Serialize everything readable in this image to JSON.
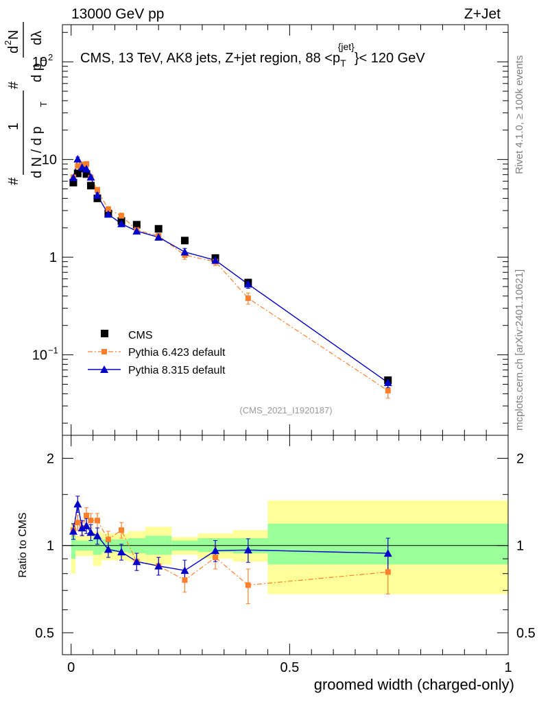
{
  "header": {
    "left": "13000 GeV pp",
    "right": "Z+Jet"
  },
  "side_labels": {
    "rivet": "Rivet 4.1.0, ≥ 100k events",
    "mcplots": "mcplots.cern.ch [arXiv:2401.10621]"
  },
  "chart_data": [
    {
      "type": "scatter",
      "panel": "main",
      "title": "CMS, 13 TeV, AK8 jets, Z+jet region, 88 <p_T^{jet}< 120 GeV",
      "title_parts": {
        "t1": "CMS, 13 TeV, AK8 jets, Z+jet region, 88 <p",
        "sub": "T",
        "sup": "{jet}",
        "t2": "}< 120 GeV"
      },
      "analysis_tag": "(CMS_2021_I1920187)",
      "ylabel_parts": {
        "a": "#",
        "b": "1",
        "c": "d N / d p",
        "d": "T",
        "e": "#",
        "f": "d p",
        "g": "T",
        "h": "d",
        "i": "2",
        "j": "N",
        "k": "dλ"
      },
      "yscale": "log",
      "ylim": [
        0.015,
        240
      ],
      "xlim": [
        -0.02,
        1.0
      ],
      "y_ticks": [
        {
          "v": 100,
          "label": "10",
          "sup": "2"
        },
        {
          "v": 10,
          "label": "10",
          "sup": ""
        },
        {
          "v": 1,
          "label": "1",
          "sup": ""
        },
        {
          "v": 0.1,
          "label": "10",
          "sup": "−1"
        }
      ],
      "legend_position": "lower-left",
      "series": [
        {
          "name": "CMS",
          "marker": "square",
          "color": "#000000",
          "line": "none",
          "x": [
            0.005,
            0.015,
            0.025,
            0.035,
            0.045,
            0.06,
            0.085,
            0.115,
            0.15,
            0.2,
            0.26,
            0.33,
            0.405,
            0.725
          ],
          "y": [
            5.8,
            7.2,
            8.1,
            7.1,
            5.4,
            4.0,
            2.8,
            2.35,
            2.15,
            1.95,
            1.48,
            0.98,
            0.55,
            0.055
          ]
        },
        {
          "name": "Pythia 6.423 default",
          "marker": "square-small",
          "color": "#ff7f2a",
          "line": "dashdot",
          "x": [
            0.005,
            0.015,
            0.025,
            0.035,
            0.045,
            0.06,
            0.085,
            0.115,
            0.15,
            0.2,
            0.26,
            0.33,
            0.405,
            0.725
          ],
          "y": [
            6.6,
            8.6,
            8.9,
            9.0,
            6.5,
            4.9,
            3.1,
            2.65,
            1.9,
            1.65,
            1.05,
            0.9,
            0.38,
            0.043
          ],
          "yerr": [
            0.3,
            0.4,
            0.4,
            0.5,
            0.3,
            0.25,
            0.2,
            0.18,
            0.12,
            0.1,
            0.1,
            0.08,
            0.05,
            0.007
          ]
        },
        {
          "name": "Pythia 8.315 default",
          "marker": "triangle",
          "color": "#0000cc",
          "line": "solid",
          "x": [
            0.005,
            0.015,
            0.025,
            0.035,
            0.045,
            0.06,
            0.085,
            0.115,
            0.15,
            0.2,
            0.26,
            0.33,
            0.405,
            0.725
          ],
          "y": [
            6.5,
            10.1,
            8.3,
            8.0,
            6.6,
            4.3,
            2.75,
            2.2,
            1.85,
            1.6,
            1.13,
            0.93,
            0.53,
            0.052
          ],
          "yerr": [
            0.35,
            0.5,
            0.4,
            0.45,
            0.35,
            0.25,
            0.18,
            0.15,
            0.12,
            0.1,
            0.1,
            0.08,
            0.05,
            0.006
          ]
        }
      ]
    },
    {
      "type": "scatter",
      "panel": "ratio",
      "ylabel": "Ratio to CMS",
      "xlabel": "groomed width (charged-only)",
      "yscale": "log",
      "ylim": [
        0.42,
        2.4
      ],
      "xlim": [
        -0.02,
        1.0
      ],
      "y_ticks": [
        {
          "v": 2,
          "label": "2"
        },
        {
          "v": 1,
          "label": "1"
        },
        {
          "v": 0.5,
          "label": "0.5"
        }
      ],
      "x_ticks": [
        {
          "v": 0,
          "label": "0"
        },
        {
          "v": 0.5,
          "label": "0.5"
        },
        {
          "v": 1,
          "label": "1"
        }
      ],
      "bands": [
        {
          "x0": 0.0,
          "x1": 0.01,
          "g_lo": 0.9,
          "g_hi": 1.1,
          "y_lo": 0.8,
          "y_hi": 1.2
        },
        {
          "x0": 0.01,
          "x1": 0.02,
          "g_lo": 0.96,
          "g_hi": 1.04,
          "y_lo": 0.92,
          "y_hi": 1.08
        },
        {
          "x0": 0.02,
          "x1": 0.03,
          "g_lo": 0.96,
          "g_hi": 1.04,
          "y_lo": 0.92,
          "y_hi": 1.08
        },
        {
          "x0": 0.03,
          "x1": 0.04,
          "g_lo": 0.96,
          "g_hi": 1.04,
          "y_lo": 0.92,
          "y_hi": 1.08
        },
        {
          "x0": 0.04,
          "x1": 0.05,
          "g_lo": 0.96,
          "g_hi": 1.05,
          "y_lo": 0.92,
          "y_hi": 1.1
        },
        {
          "x0": 0.05,
          "x1": 0.07,
          "g_lo": 0.93,
          "g_hi": 1.07,
          "y_lo": 0.85,
          "y_hi": 1.12
        },
        {
          "x0": 0.07,
          "x1": 0.1,
          "g_lo": 0.95,
          "g_hi": 1.05,
          "y_lo": 0.89,
          "y_hi": 1.1
        },
        {
          "x0": 0.1,
          "x1": 0.13,
          "g_lo": 0.95,
          "g_hi": 1.05,
          "y_lo": 0.89,
          "y_hi": 1.1
        },
        {
          "x0": 0.13,
          "x1": 0.17,
          "g_lo": 0.94,
          "g_hi": 1.06,
          "y_lo": 0.88,
          "y_hi": 1.12
        },
        {
          "x0": 0.17,
          "x1": 0.23,
          "g_lo": 0.93,
          "g_hi": 1.08,
          "y_lo": 0.86,
          "y_hi": 1.16
        },
        {
          "x0": 0.23,
          "x1": 0.29,
          "g_lo": 0.96,
          "g_hi": 1.04,
          "y_lo": 0.93,
          "y_hi": 1.07
        },
        {
          "x0": 0.29,
          "x1": 0.37,
          "g_lo": 0.95,
          "g_hi": 1.06,
          "y_lo": 0.9,
          "y_hi": 1.1
        },
        {
          "x0": 0.37,
          "x1": 0.45,
          "g_lo": 0.94,
          "g_hi": 1.06,
          "y_lo": 0.88,
          "y_hi": 1.13
        },
        {
          "x0": 0.45,
          "x1": 1.0,
          "g_lo": 0.86,
          "g_hi": 1.19,
          "y_lo": 0.68,
          "y_hi": 1.43
        }
      ],
      "series": [
        {
          "name": "Pythia 6.423 default",
          "color": "#ff7f2a",
          "line": "dashdot",
          "x": [
            0.005,
            0.015,
            0.025,
            0.035,
            0.045,
            0.06,
            0.085,
            0.115,
            0.15,
            0.2,
            0.26,
            0.33,
            0.405,
            0.725
          ],
          "y": [
            1.13,
            1.2,
            1.15,
            1.27,
            1.22,
            1.22,
            1.05,
            1.13,
            0.88,
            0.85,
            0.76,
            0.91,
            0.73,
            0.81
          ],
          "yerr": [
            0.05,
            0.07,
            0.06,
            0.08,
            0.07,
            0.07,
            0.07,
            0.07,
            0.06,
            0.06,
            0.07,
            0.08,
            0.1,
            0.13
          ]
        },
        {
          "name": "Pythia 8.315 default",
          "color": "#0000cc",
          "line": "solid",
          "x": [
            0.005,
            0.015,
            0.025,
            0.035,
            0.045,
            0.06,
            0.085,
            0.115,
            0.15,
            0.2,
            0.26,
            0.33,
            0.405,
            0.725
          ],
          "y": [
            1.12,
            1.39,
            1.15,
            1.17,
            1.11,
            1.08,
            0.97,
            0.95,
            0.88,
            0.85,
            0.82,
            0.96,
            0.965,
            0.94
          ],
          "yerr": [
            0.07,
            0.09,
            0.07,
            0.07,
            0.07,
            0.07,
            0.06,
            0.06,
            0.06,
            0.06,
            0.07,
            0.08,
            0.09,
            0.12
          ]
        }
      ]
    }
  ]
}
